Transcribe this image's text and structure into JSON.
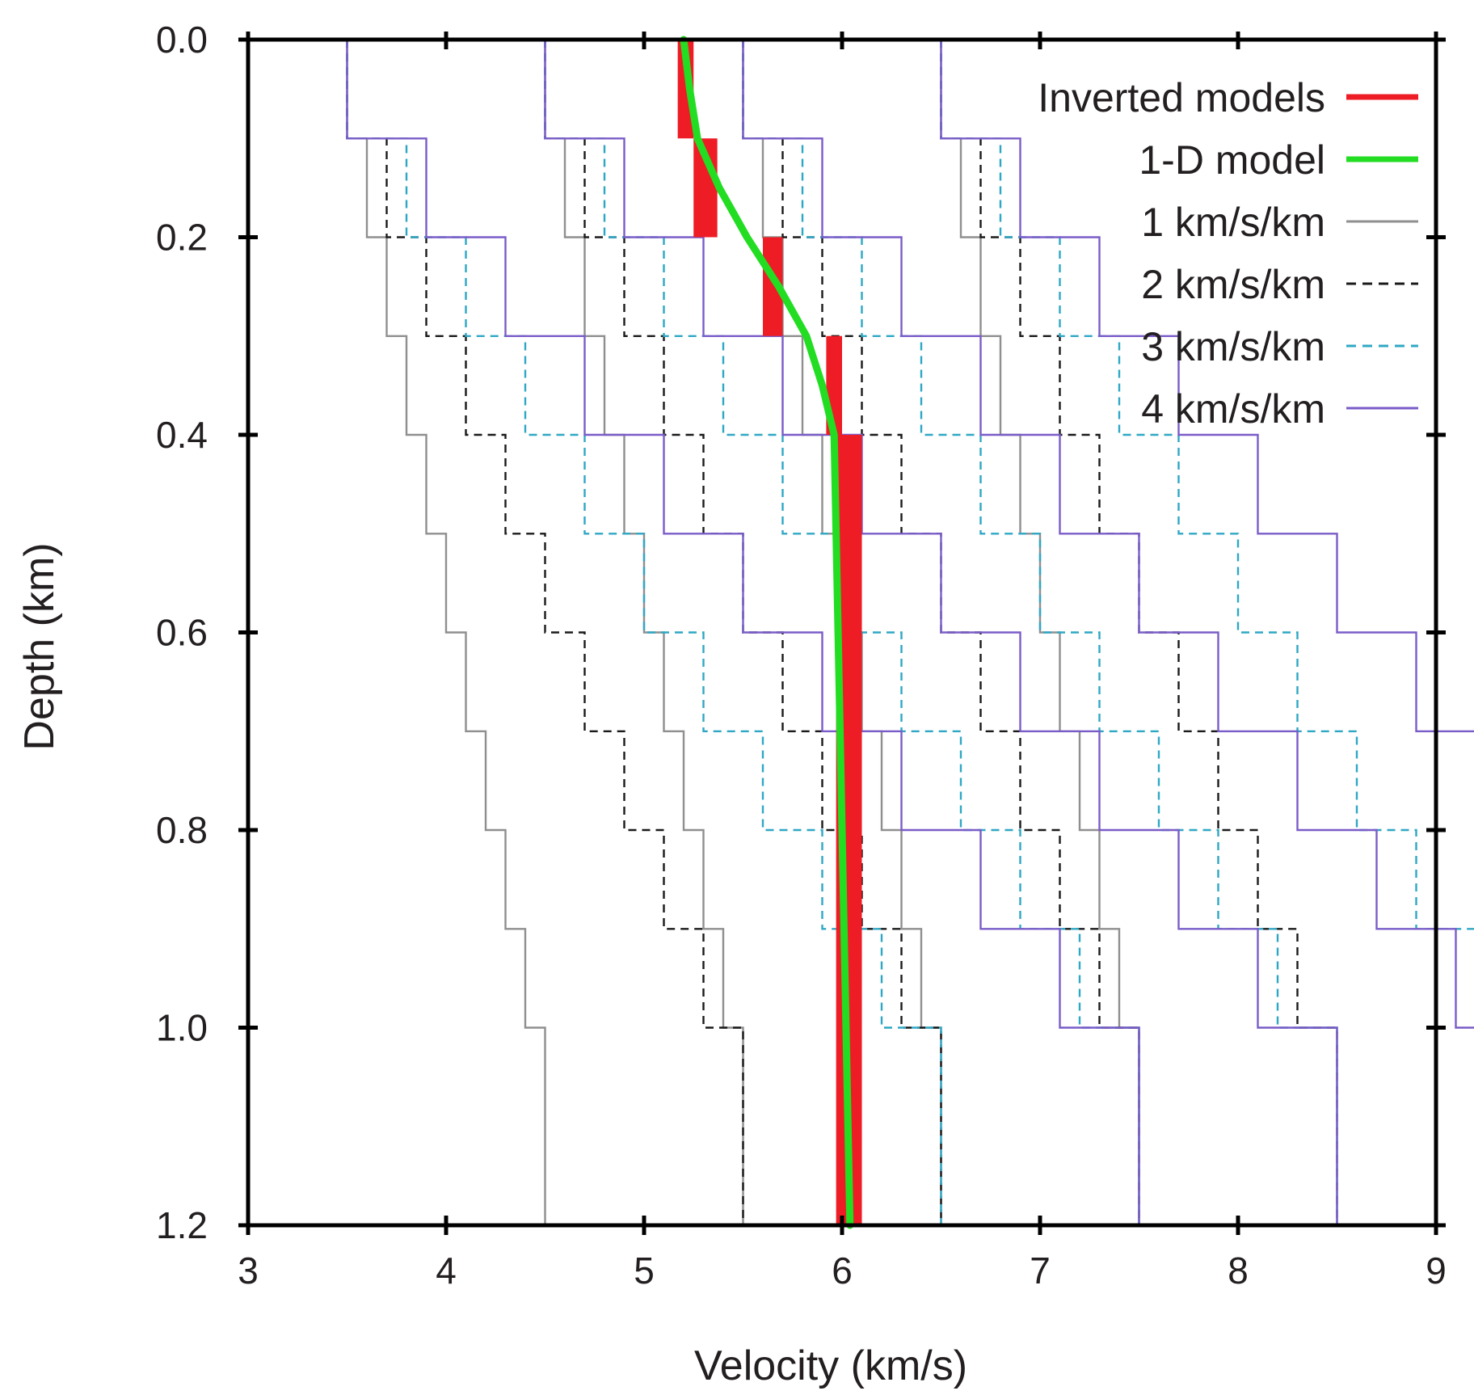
{
  "chart_data": {
    "type": "line",
    "xlabel": "Velocity (km/s)",
    "ylabel": "Depth (km)",
    "xlim": [
      3,
      9
    ],
    "ylim": [
      0,
      1.2
    ],
    "y_inverted": true,
    "x_ticks": [
      "3",
      "4",
      "5",
      "6",
      "7",
      "8",
      "9"
    ],
    "y_ticks": [
      "0.0",
      "0.2",
      "0.4",
      "0.6",
      "0.8",
      "1.0",
      "1.2"
    ],
    "grid": false,
    "legend_position": "top-right",
    "layer_depths": [
      0,
      0.1,
      0.2,
      0.3,
      0.4,
      0.5,
      0.6,
      0.7,
      0.8,
      0.9,
      1.0,
      1.2
    ],
    "colors": {
      "inverted": "#ee1c24",
      "one_d": "#22dd22",
      "g1": "#8f8f8f",
      "g2": "#1a1a1a",
      "g3": "#2fa7c4",
      "g4": "#7a5cc8"
    },
    "legend": [
      {
        "label": "Inverted models",
        "key": "inverted",
        "style": "thick"
      },
      {
        "label": "1-D model",
        "key": "one_d",
        "style": "thick"
      },
      {
        "label": "1 km/s/km",
        "key": "g1",
        "style": "solid"
      },
      {
        "label": "2 km/s/km",
        "key": "g2",
        "style": "dashed"
      },
      {
        "label": "3 km/s/km",
        "key": "g3",
        "style": "dashed"
      },
      {
        "label": "4 km/s/km",
        "key": "g4",
        "style": "solid"
      }
    ],
    "series": [
      {
        "name": "1 km/s/km",
        "key": "g1",
        "gradient": 1,
        "surface_velocities": [
          3.5,
          4.5,
          5.5,
          6.5
        ],
        "style": "solid"
      },
      {
        "name": "2 km/s/km",
        "key": "g2",
        "gradient": 2,
        "surface_velocities": [
          3.5,
          4.5,
          5.5,
          6.5
        ],
        "style": "dashed"
      },
      {
        "name": "3 km/s/km",
        "key": "g3",
        "gradient": 3,
        "surface_velocities": [
          3.5,
          4.5,
          5.5,
          6.5
        ],
        "style": "dashed"
      },
      {
        "name": "4 km/s/km",
        "key": "g4",
        "gradient": 4,
        "surface_velocities": [
          3.5,
          4.5,
          5.5,
          6.5
        ],
        "style": "solid"
      }
    ],
    "inverted_models_band": {
      "depths": [
        0,
        0.1,
        0.2,
        0.3,
        0.4,
        1.2
      ],
      "min": [
        5.17,
        5.25,
        5.6,
        5.92,
        5.97
      ],
      "max": [
        5.25,
        5.37,
        5.7,
        6.0,
        6.1
      ]
    },
    "one_d_model": {
      "depth": [
        0,
        0.05,
        0.1,
        0.15,
        0.2,
        0.25,
        0.3,
        0.35,
        0.4,
        0.6,
        0.8,
        1.0,
        1.2
      ],
      "velocity": [
        5.2,
        5.23,
        5.27,
        5.38,
        5.52,
        5.68,
        5.82,
        5.9,
        5.96,
        5.98,
        6.0,
        6.02,
        6.04
      ]
    }
  }
}
